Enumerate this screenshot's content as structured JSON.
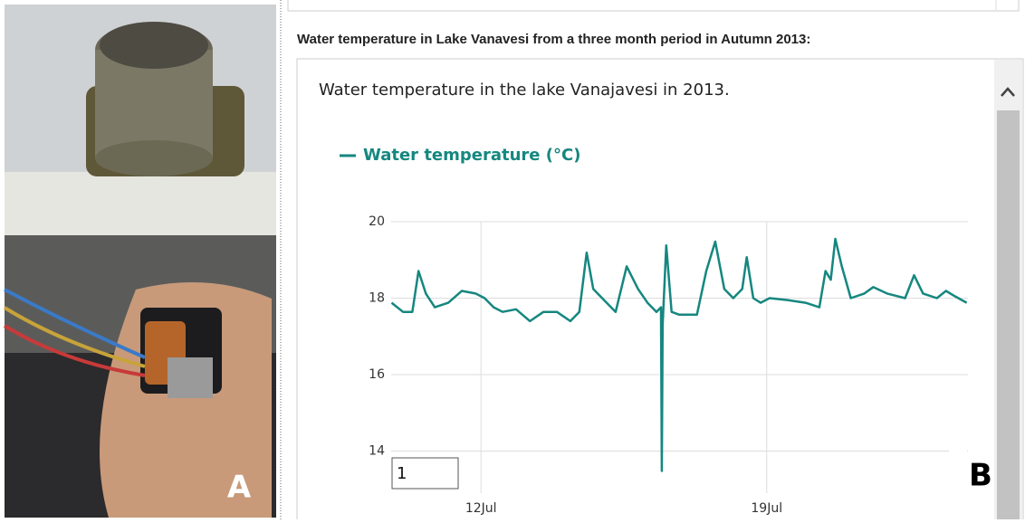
{
  "heading": "Water temperature in Lake Vanavesi from a three month period in Autumn 2013:",
  "figure_labels": [
    "A",
    "B"
  ],
  "input_value": "1",
  "chart_data": {
    "type": "line",
    "title": "Water temperature in the lake Vanajavesi in 2013.",
    "x": [
      9.81,
      10.09,
      10.32,
      10.47,
      10.65,
      10.87,
      11.2,
      11.53,
      11.87,
      12.09,
      12.31,
      12.53,
      12.86,
      13.2,
      13.53,
      13.86,
      14.19,
      14.41,
      14.59,
      14.75,
      15.08,
      15.3,
      15.57,
      15.85,
      16.08,
      16.3,
      16.41,
      16.43,
      16.45,
      16.54,
      16.67,
      16.85,
      17.29,
      17.52,
      17.74,
      17.96,
      18.18,
      18.4,
      18.51,
      18.67,
      18.85,
      19.07,
      19.51,
      19.95,
      20.29,
      20.44,
      20.57,
      20.68,
      20.84,
      21.06,
      21.39,
      21.61,
      21.95,
      22.39,
      22.61,
      22.83,
      23.17,
      23.39,
      23.61,
      23.9
    ],
    "series": [
      {
        "name": "Water temperature (°C)",
        "color": "#15877f",
        "values": [
          17.88,
          17.64,
          17.64,
          18.71,
          18.12,
          17.76,
          17.88,
          18.19,
          18.12,
          18.0,
          17.76,
          17.64,
          17.71,
          17.4,
          17.64,
          17.64,
          17.4,
          17.64,
          19.19,
          18.24,
          17.88,
          17.64,
          18.83,
          18.24,
          17.88,
          17.64,
          17.76,
          13.48,
          17.29,
          19.38,
          17.64,
          17.57,
          17.57,
          18.71,
          19.48,
          18.24,
          18.0,
          18.24,
          19.07,
          18.0,
          17.88,
          18.0,
          17.95,
          17.88,
          17.76,
          18.71,
          18.48,
          19.55,
          18.83,
          18.0,
          18.12,
          18.29,
          18.12,
          18.0,
          18.6,
          18.12,
          18.0,
          18.19,
          18.05,
          17.88
        ]
      }
    ],
    "xlim": [
      9.8,
      23.93
    ],
    "xticks": [
      {
        "value": 12,
        "label": "12Jul"
      },
      {
        "value": 19,
        "label": "19Jul"
      }
    ],
    "ylim": [
      12.9,
      20
    ],
    "yticks": [
      14,
      16,
      18,
      20
    ],
    "grid": true
  }
}
